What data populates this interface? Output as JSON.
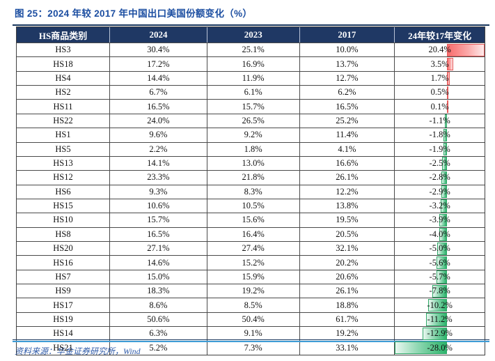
{
  "title": "图 25：2024 年较 2017 年中国出口美国份额变化（%）",
  "source": "资料来源：华金证券研究所，Wind",
  "colors": {
    "title_blue": "#1C4EA1",
    "header_bg": "#1F3864",
    "header_text": "#FFFFFF",
    "grid_border": "#4A4A4A",
    "top_rule": "#17365D",
    "bottom_rule_blue": "#3D9BD5",
    "positive_bar": "#F86C6C",
    "positive_bar_border": "#E65A5A",
    "negative_bar": "#2DB46C",
    "negative_bar_border": "#2FA868",
    "source_text": "#2F5BA8"
  },
  "chart_data": {
    "type": "table",
    "title": "图 25：2024 年较 2017 年中国出口美国份额变化（%）",
    "units": "%",
    "columns": [
      "HS商品类别",
      "2024",
      "2023",
      "2017",
      "24年较17年变化"
    ],
    "bar_column": "24年较17年变化",
    "bar_axis_range": [
      -28.0,
      20.4
    ],
    "rows": [
      [
        "HS3",
        30.4,
        25.1,
        10.0,
        20.4
      ],
      [
        "HS18",
        17.2,
        16.9,
        13.7,
        3.5
      ],
      [
        "HS4",
        14.4,
        11.9,
        12.7,
        1.7
      ],
      [
        "HS2",
        6.7,
        6.1,
        6.2,
        0.5
      ],
      [
        "HS11",
        16.5,
        15.7,
        16.5,
        0.1
      ],
      [
        "HS22",
        24.0,
        26.5,
        25.2,
        -1.1
      ],
      [
        "HS1",
        9.6,
        9.2,
        11.4,
        -1.8
      ],
      [
        "HS5",
        2.2,
        1.8,
        4.1,
        -1.9
      ],
      [
        "HS13",
        14.1,
        13.0,
        16.6,
        -2.5
      ],
      [
        "HS12",
        23.3,
        21.8,
        26.1,
        -2.8
      ],
      [
        "HS6",
        9.3,
        8.3,
        12.2,
        -2.9
      ],
      [
        "HS15",
        10.6,
        10.5,
        13.8,
        -3.2
      ],
      [
        "HS10",
        15.7,
        15.6,
        19.5,
        -3.9
      ],
      [
        "HS8",
        16.5,
        16.4,
        20.5,
        -4.0
      ],
      [
        "HS20",
        27.1,
        27.4,
        32.1,
        -5.0
      ],
      [
        "HS16",
        14.6,
        15.2,
        20.2,
        -5.6
      ],
      [
        "HS7",
        15.0,
        15.9,
        20.6,
        -5.7
      ],
      [
        "HS9",
        18.3,
        19.2,
        26.1,
        -7.8
      ],
      [
        "HS17",
        8.6,
        8.5,
        18.8,
        -10.2
      ],
      [
        "HS19",
        50.6,
        50.4,
        61.7,
        -11.2
      ],
      [
        "HS14",
        6.3,
        9.1,
        19.2,
        -12.9
      ],
      [
        "HS21",
        5.2,
        7.3,
        33.1,
        -28.0
      ]
    ]
  }
}
